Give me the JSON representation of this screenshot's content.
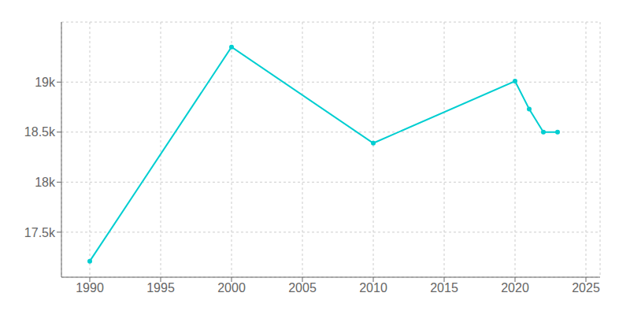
{
  "chart_data": {
    "type": "line",
    "x": [
      1990,
      2000,
      2010,
      2020,
      2021,
      2022,
      2023
    ],
    "values": [
      17210,
      19350,
      18390,
      19010,
      18730,
      18500,
      18500
    ],
    "color": "#00CED1",
    "marker": "circle",
    "xlim": [
      1988,
      2026
    ],
    "xticks": [
      1990,
      1995,
      2000,
      2005,
      2010,
      2015,
      2020,
      2025
    ],
    "ylim": [
      17050,
      19600
    ],
    "yticks": [
      {
        "value": 17500,
        "label": "17.5k"
      },
      {
        "value": 18000,
        "label": "18k"
      },
      {
        "value": 18500,
        "label": "18.5k"
      },
      {
        "value": 19000,
        "label": "19k"
      }
    ],
    "grid": true
  }
}
